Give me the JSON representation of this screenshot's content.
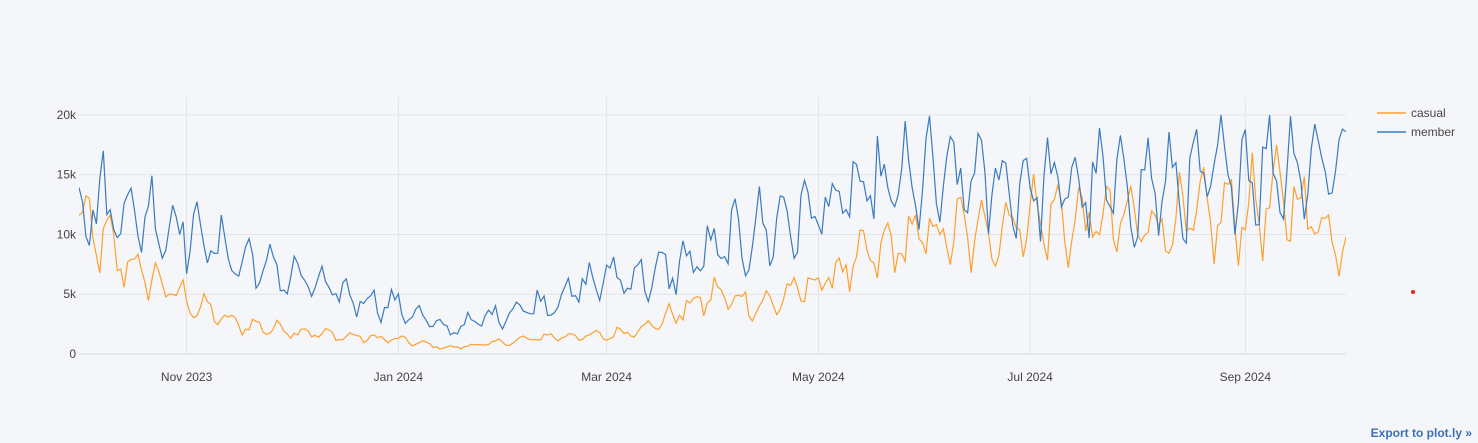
{
  "export_link": "Export to plot.ly »",
  "colors": {
    "casual": "#ff9f2e",
    "member": "#3a7bbf",
    "grid": "#e2e4ea",
    "marker": "#e0202a"
  },
  "chart_data": {
    "type": "line",
    "title": "",
    "xlabel": "",
    "ylabel": "",
    "x_start": "2023-10-01",
    "x_end": "2024-09-30",
    "x": [
      "2023-10-01",
      "2023-10-15",
      "2023-11-01",
      "2023-11-15",
      "2023-12-01",
      "2023-12-15",
      "2024-01-01",
      "2024-01-15",
      "2024-02-01",
      "2024-02-15",
      "2024-03-01",
      "2024-03-15",
      "2024-04-01",
      "2024-04-15",
      "2024-05-01",
      "2024-05-15",
      "2024-06-01",
      "2024-06-15",
      "2024-07-01",
      "2024-07-15",
      "2024-08-01",
      "2024-08-15",
      "2024-09-01",
      "2024-09-15",
      "2024-09-30"
    ],
    "ylim": [
      0,
      21000
    ],
    "yticks": [
      0,
      5000,
      10000,
      15000,
      20000
    ],
    "ytick_labels": [
      "0",
      "5k",
      "10k",
      "15k",
      "20k"
    ],
    "xticks": [
      "2023-11-01",
      "2024-01-01",
      "2024-03-01",
      "2024-05-01",
      "2024-07-01",
      "2024-09-01"
    ],
    "xtick_labels": [
      "Nov 2023",
      "Jan 2024",
      "Mar 2024",
      "May 2024",
      "Jul 2024",
      "Sep 2024"
    ],
    "legend_position": "top-right",
    "grid": true,
    "series": [
      {
        "name": "casual",
        "color": "#ff9f2e",
        "values": [
          11000,
          7500,
          4500,
          2500,
          2000,
          1500,
          1200,
          500,
          1000,
          1500,
          1500,
          2500,
          5000,
          4000,
          6000,
          8000,
          10000,
          10000,
          11500,
          11000,
          11000,
          11000,
          12000,
          13000,
          9000
        ]
      },
      {
        "name": "member",
        "color": "#3a7bbf",
        "values": [
          13000,
          12000,
          10500,
          8000,
          6500,
          5000,
          4000,
          2000,
          3500,
          4500,
          6500,
          6500,
          8500,
          10500,
          12000,
          13500,
          14500,
          14500,
          14000,
          14000,
          14000,
          14000,
          15500,
          16000,
          16500
        ]
      }
    ]
  },
  "marker": {
    "date": "2024-10-03",
    "value": 5000
  }
}
